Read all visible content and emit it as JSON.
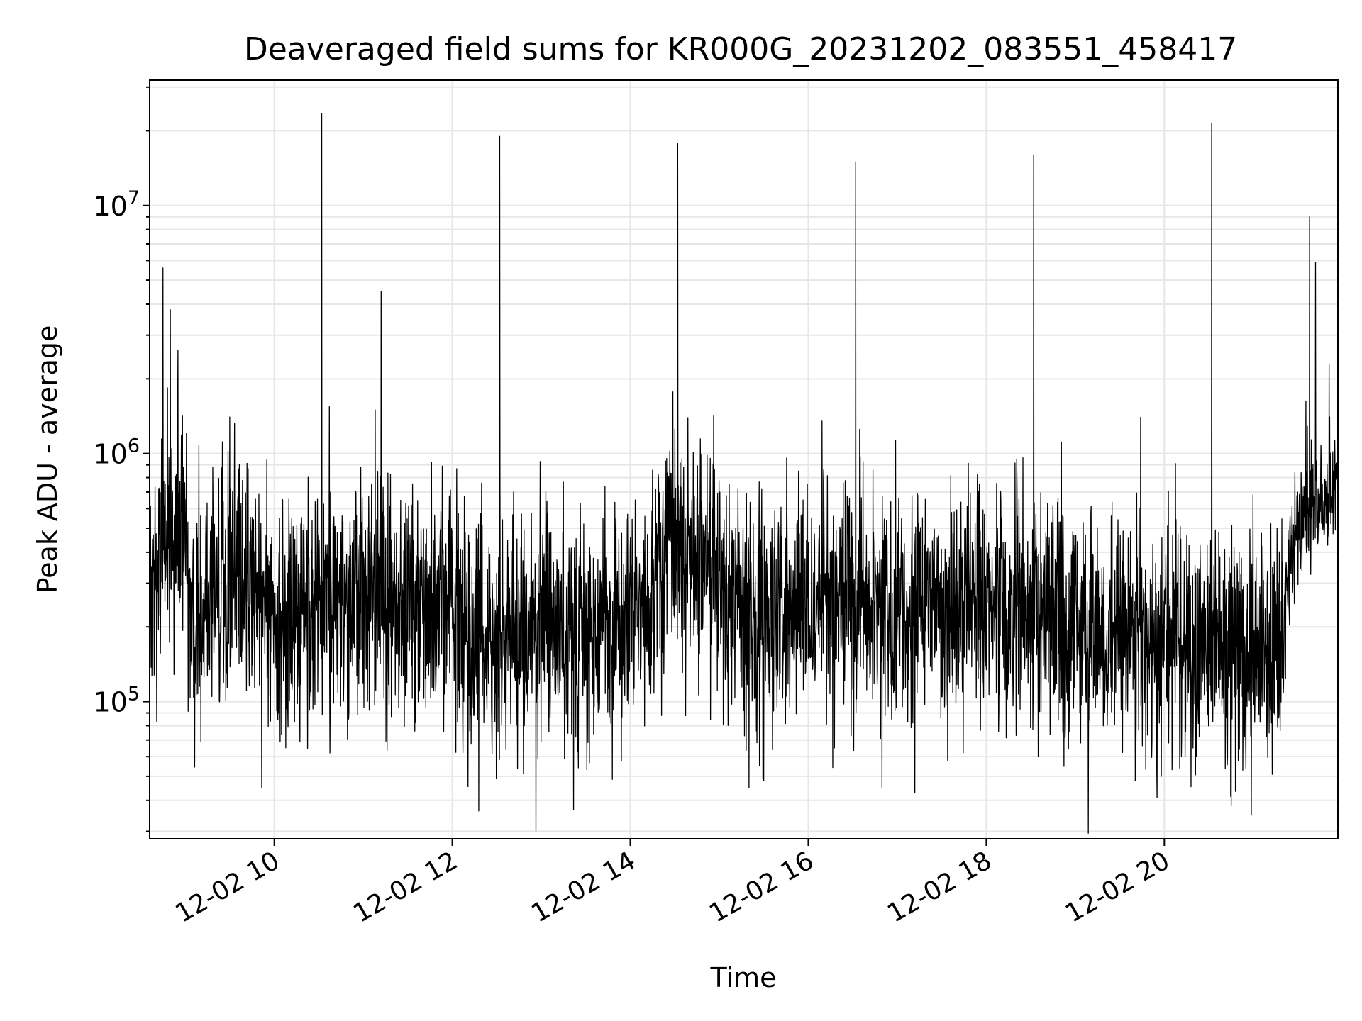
{
  "chart_data": {
    "type": "line",
    "title": "Deaveraged field sums for KR000G_20231202_083551_458417",
    "xlabel": "Time",
    "ylabel": "Peak ADU - average",
    "xlim": [
      "2023-12-02 08:36",
      "2023-12-02 21:57"
    ],
    "ylim": [
      28000,
      32000000
    ],
    "y_scale": "log",
    "grid": true,
    "x_ticks": [
      {
        "value": "2023-12-02 10:00",
        "label": "12-02 10"
      },
      {
        "value": "2023-12-02 12:00",
        "label": "12-02 12"
      },
      {
        "value": "2023-12-02 14:00",
        "label": "12-02 14"
      },
      {
        "value": "2023-12-02 16:00",
        "label": "12-02 16"
      },
      {
        "value": "2023-12-02 18:00",
        "label": "12-02 18"
      },
      {
        "value": "2023-12-02 20:00",
        "label": "12-02 20"
      }
    ],
    "y_ticks": [
      {
        "value": 100000,
        "base": "10",
        "exp": "5"
      },
      {
        "value": 1000000,
        "base": "10",
        "exp": "6"
      },
      {
        "value": 10000000,
        "base": "10",
        "exp": "7"
      }
    ],
    "line_color": "#000000",
    "baseline": [
      {
        "time": "2023-12-02 08:36",
        "median": 380000,
        "spread": 0.42
      },
      {
        "time": "2023-12-02 09:00",
        "median": 560000,
        "spread": 0.38
      },
      {
        "time": "2023-12-02 09:03",
        "median": 250000,
        "spread": 0.42
      },
      {
        "time": "2023-12-02 09:30",
        "median": 330000,
        "spread": 0.42
      },
      {
        "time": "2023-12-02 09:50",
        "median": 280000,
        "spread": 0.42
      },
      {
        "time": "2023-12-02 10:00",
        "median": 200000,
        "spread": 0.42
      },
      {
        "time": "2023-12-02 10:30",
        "median": 240000,
        "spread": 0.42
      },
      {
        "time": "2023-12-02 11:00",
        "median": 290000,
        "spread": 0.42
      },
      {
        "time": "2023-12-02 11:30",
        "median": 260000,
        "spread": 0.42
      },
      {
        "time": "2023-12-02 12:00",
        "median": 230000,
        "spread": 0.42
      },
      {
        "time": "2023-12-02 12:30",
        "median": 170000,
        "spread": 0.42
      },
      {
        "time": "2023-12-02 13:00",
        "median": 210000,
        "spread": 0.42
      },
      {
        "time": "2023-12-02 13:30",
        "median": 190000,
        "spread": 0.42
      },
      {
        "time": "2023-12-02 14:00",
        "median": 200000,
        "spread": 0.42
      },
      {
        "time": "2023-12-02 14:15",
        "median": 300000,
        "spread": 0.42
      },
      {
        "time": "2023-12-02 14:30",
        "median": 420000,
        "spread": 0.42
      },
      {
        "time": "2023-12-02 15:00",
        "median": 330000,
        "spread": 0.42
      },
      {
        "time": "2023-12-02 15:10",
        "median": 210000,
        "spread": 0.42
      },
      {
        "time": "2023-12-02 15:30",
        "median": 210000,
        "spread": 0.42
      },
      {
        "time": "2023-12-02 16:00",
        "median": 240000,
        "spread": 0.42
      },
      {
        "time": "2023-12-02 17:00",
        "median": 250000,
        "spread": 0.42
      },
      {
        "time": "2023-12-02 18:00",
        "median": 240000,
        "spread": 0.42
      },
      {
        "time": "2023-12-02 18:30",
        "median": 260000,
        "spread": 0.42
      },
      {
        "time": "2023-12-02 19:00",
        "median": 210000,
        "spread": 0.42
      },
      {
        "time": "2023-12-02 20:00",
        "median": 170000,
        "spread": 0.42
      },
      {
        "time": "2023-12-02 21:00",
        "median": 160000,
        "spread": 0.42
      },
      {
        "time": "2023-12-02 21:20",
        "median": 165000,
        "spread": 0.42
      },
      {
        "time": "2023-12-02 21:22",
        "median": 350000,
        "spread": 0.25
      },
      {
        "time": "2023-12-02 21:35",
        "median": 620000,
        "spread": 0.22
      },
      {
        "time": "2023-12-02 21:57",
        "median": 720000,
        "spread": 0.22
      }
    ],
    "spikes": [
      {
        "time": "2023-12-02 08:45",
        "value": 5600000
      },
      {
        "time": "2023-12-02 08:50",
        "value": 3800000
      },
      {
        "time": "2023-12-02 08:55",
        "value": 2600000
      },
      {
        "time": "2023-12-02 10:32",
        "value": 23500000
      },
      {
        "time": "2023-12-02 11:12",
        "value": 4500000
      },
      {
        "time": "2023-12-02 12:32",
        "value": 19000000
      },
      {
        "time": "2023-12-02 14:32",
        "value": 17800000
      },
      {
        "time": "2023-12-02 16:32",
        "value": 15000000
      },
      {
        "time": "2023-12-02 18:32",
        "value": 16000000
      },
      {
        "time": "2023-12-02 19:44",
        "value": 1400000
      },
      {
        "time": "2023-12-02 20:32",
        "value": 21500000
      },
      {
        "time": "2023-12-02 21:38",
        "value": 9000000
      },
      {
        "time": "2023-12-02 21:42",
        "value": 5900000
      },
      {
        "time": "2023-12-02 21:51",
        "value": 2300000
      }
    ],
    "dips": [
      {
        "time": "2023-12-02 15:20",
        "value": 45000
      },
      {
        "time": "2023-12-02 15:27",
        "value": 55000
      },
      {
        "time": "2023-12-02 15:30",
        "value": 48000
      },
      {
        "time": "2023-12-02 17:34",
        "value": 58000
      },
      {
        "time": "2023-12-02 18:35",
        "value": 60000
      },
      {
        "time": "2023-12-02 19:55",
        "value": 52000
      },
      {
        "time": "2023-12-02 20:45",
        "value": 38000
      }
    ]
  }
}
